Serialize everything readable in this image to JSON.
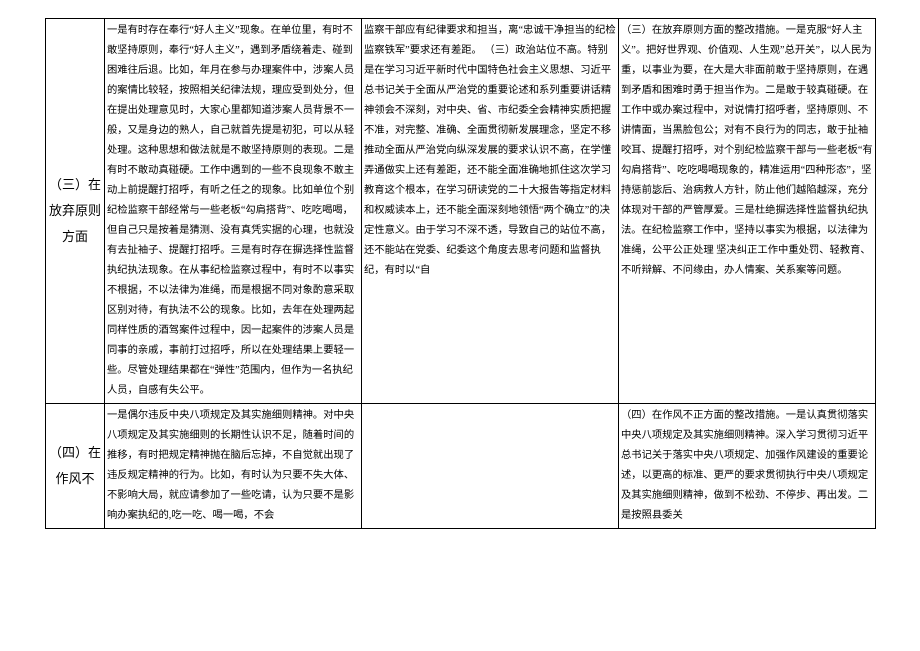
{
  "rows": [
    {
      "heading": "（三）在放弃原则方面",
      "col2": "一是有时存在奉行“好人主义”现象。在单位里，有时不敢坚持原则，奉行“好人主义”，遇到矛盾绕着走、碰到困难往后退。比如，年月在参与办理案件中，涉案人员的案情比较轻，按照相关纪律法规，理应受到处分，但在提出处理意见时，大家心里都知道涉案人员背景不一般，又是身边的熟人，自己就首先提是初犯，可以从轻处理。这种思想和做法就是不敢坚持原则的表现。二是有时不敢动真碰硬。工作中遇到的一些不良现象不敢主动上前提醒打招呼，有听之任之的现象。比如单位个别纪检监察干部经常与一些老板“勾肩搭背”、吃吃喝喝，但自己只是按着是猜测、没有真凭实据的心理，也就没有去扯袖子、提醒打招呼。三是有时存在摒选择性监督执纪执法现象。在从事纪检监察过程中，有时不以事实不根据，不以法律为准绳，而是根据不同对象酌意采取区别对待，有执法不公的现象。比如，去年在处理两起同样性质的酒驾案件过程中，因一起案件的涉案人员是同事的亲戚，事前打过招呼，所以在处理结果上要轻一些。尽管处理结果都在“弹性”范围内，但作为一名执纪人员，自感有失公平。",
      "col3": "监察干部应有纪律要求和担当，离“忠诚干净担当的纪检监察铁军”要求还有差距。\n（三）政治站位不高。特别是在学习习近平新时代中国特色社会主义思想、习近平总书记关于全面从严治党的重要论述和系列重要讲话精神领会不深刻，对中央、省、市纪委全会精神实质把握不准，对完整、准确、全面贯彻新发展理念，坚定不移推动全面从严治党向纵深发展的要求认识不高，在学懂弄通做实上还有差距，还不能全面准确地抓住这次学习教育这个根本，在学习研读党的二十大报告等指定材料和权威读本上，还不能全面深刻地领悟“两个确立”的决定性意义。由于学习不深不透，导致自己的站位不高，还不能站在党委、纪委这个角度去思考问题和监督执纪，有时以“自",
      "col4": "（三）在放弃原则方面的整改措施。一是克服“好人主义”。把好世界观、价值观、人生观”总开关”，以人民为重，以事业为要，在大是大非面前敢于坚持原则，在遇到矛盾和困难时勇于担当作为。二是敢于较真碰硬。在工作中或办案过程中，对说情打招呼者，坚持原则、不讲情面，当黑脸包公；对有不良行为的同志，敢于扯袖咬耳、提醒打招呼，对个别纪检监察干部与一些老板“有勾肩搭背”、吃吃喝喝现象的，精准运用“四种形态”，坚持惩前毖后、治病救人方针，防止他们越陷越深，充分体现对干部的严管厚爱。三是杜绝摒选择性监督执纪执法。在纪检监察工作中，坚持以事实为根据，以法律为准绳，公平公正处理 坚决纠正工作中重处罚、轻教育、不听辩解、不问缘由，办人情案、关系案等问题。"
    },
    {
      "heading": "（四）在作风不",
      "col2": "一是偶尔违反中央八项规定及其实施细则精神。对中央八项规定及其实施细则的长期性认识不足，随着时间的推移，有时把规定精神抛在脑后忘掉，不自觉就出现了违反规定精神的行为。比如，有时认为只要不失大体、不影响大局，就应请参加了一些吃请，认为只要不是影响办案执纪的,吃一吃、喝一喝，不会",
      "col3": "",
      "col4": "（四）在作风不正方面的整改措施。一是认真贯彻落实中央八项规定及其实施细则精神。深入学习贯彻习近平总书记关于落实中央八项规定、加强作风建设的重要论述，以更高的标准、更严的要求贯彻执行中央八项规定及其实施细则精神，做到不松劲、不停步、再出发。二是按照县委关"
    }
  ]
}
